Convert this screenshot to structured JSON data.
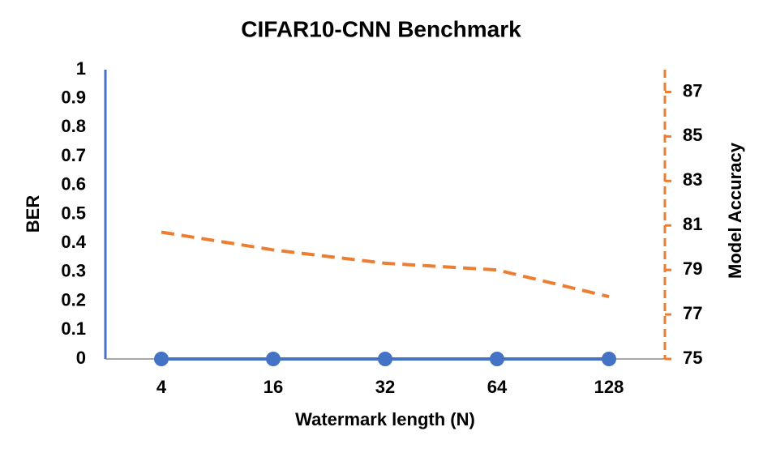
{
  "chart_data": {
    "type": "line",
    "title": "CIFAR10-CNN Benchmark",
    "x_label": "Watermark length (N)",
    "y_label": "BER",
    "y2_label": "Model Accuracy",
    "categories": [
      "4",
      "16",
      "32",
      "64",
      "128"
    ],
    "series": [
      {
        "name": "BER",
        "color": "#4472c4",
        "values": [
          0,
          0,
          0,
          0,
          0
        ],
        "marker": true
      },
      {
        "name": "Model Accuracy",
        "color": "#ed7d31",
        "values": [
          80.7,
          79.9,
          79.3,
          79.0,
          77.8
        ],
        "axis": "y2",
        "dashed": true
      }
    ],
    "ylim": [
      0,
      1
    ],
    "yticks": [
      0,
      0.1,
      0.2,
      0.3,
      0.4,
      0.5,
      0.6,
      0.7,
      0.8,
      0.9,
      1
    ],
    "y2lim": [
      75,
      88
    ],
    "y2ticks": [
      75,
      77,
      79,
      81,
      83,
      85,
      87
    ]
  }
}
